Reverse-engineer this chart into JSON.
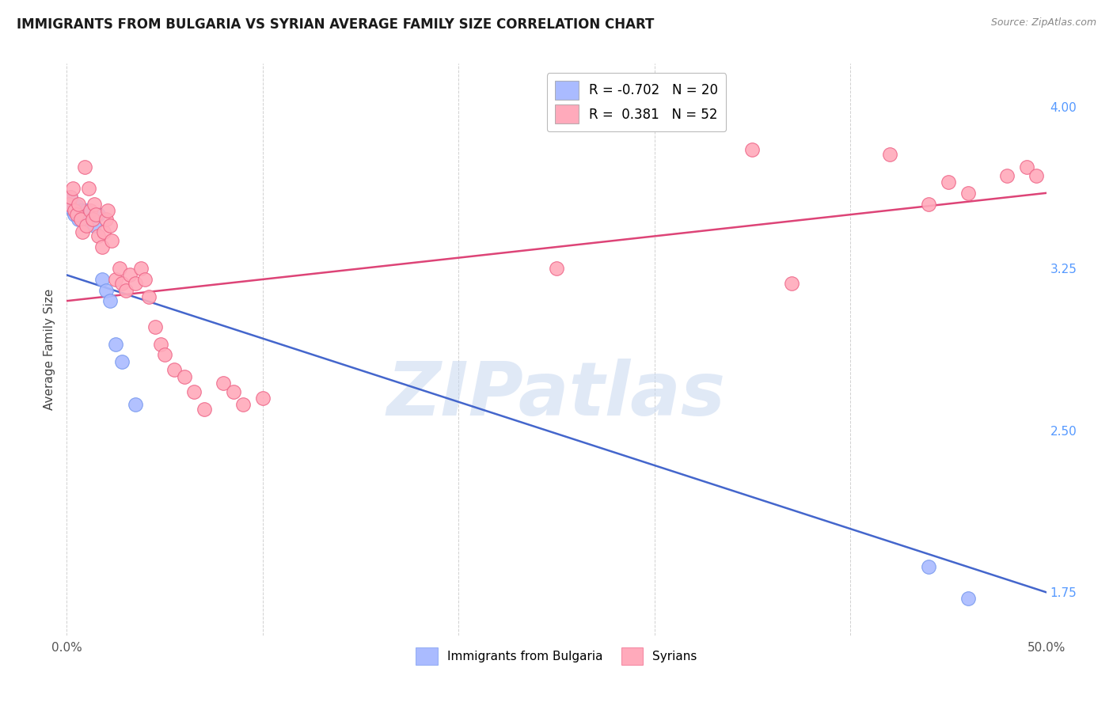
{
  "title": "IMMIGRANTS FROM BULGARIA VS SYRIAN AVERAGE FAMILY SIZE CORRELATION CHART",
  "source": "Source: ZipAtlas.com",
  "ylabel": "Average Family Size",
  "xlim": [
    0.0,
    0.5
  ],
  "ylim": [
    1.55,
    4.2
  ],
  "yticks_right": [
    1.75,
    2.5,
    3.25,
    4.0
  ],
  "bg_color": "#ffffff",
  "grid_color": "#cccccc",
  "watermark_text": "ZIPatlas",
  "legend_upper": [
    {
      "label": "R = -0.702   N = 20",
      "color": "#aabbff"
    },
    {
      "label": "R =  0.381   N = 52",
      "color": "#ffaabb"
    }
  ],
  "bulgaria_scatter": {
    "color": "#aabbff",
    "edge_color": "#7799ee",
    "points": [
      [
        0.001,
        3.55
      ],
      [
        0.002,
        3.58
      ],
      [
        0.003,
        3.52
      ],
      [
        0.004,
        3.5
      ],
      [
        0.005,
        3.54
      ],
      [
        0.006,
        3.48
      ],
      [
        0.007,
        3.52
      ],
      [
        0.008,
        3.5
      ],
      [
        0.01,
        3.52
      ],
      [
        0.012,
        3.48
      ],
      [
        0.014,
        3.45
      ],
      [
        0.016,
        3.5
      ],
      [
        0.018,
        3.2
      ],
      [
        0.02,
        3.15
      ],
      [
        0.022,
        3.1
      ],
      [
        0.025,
        2.9
      ],
      [
        0.028,
        2.82
      ],
      [
        0.035,
        2.62
      ],
      [
        0.44,
        1.87
      ],
      [
        0.46,
        1.72
      ]
    ]
  },
  "syrian_scatter": {
    "color": "#ffaabb",
    "edge_color": "#ee6688",
    "points": [
      [
        0.001,
        3.55
      ],
      [
        0.002,
        3.58
      ],
      [
        0.003,
        3.62
      ],
      [
        0.004,
        3.52
      ],
      [
        0.005,
        3.5
      ],
      [
        0.006,
        3.55
      ],
      [
        0.007,
        3.48
      ],
      [
        0.008,
        3.42
      ],
      [
        0.009,
        3.72
      ],
      [
        0.01,
        3.45
      ],
      [
        0.011,
        3.62
      ],
      [
        0.012,
        3.52
      ],
      [
        0.013,
        3.48
      ],
      [
        0.014,
        3.55
      ],
      [
        0.015,
        3.5
      ],
      [
        0.016,
        3.4
      ],
      [
        0.018,
        3.35
      ],
      [
        0.019,
        3.42
      ],
      [
        0.02,
        3.48
      ],
      [
        0.021,
        3.52
      ],
      [
        0.022,
        3.45
      ],
      [
        0.023,
        3.38
      ],
      [
        0.025,
        3.2
      ],
      [
        0.027,
        3.25
      ],
      [
        0.028,
        3.18
      ],
      [
        0.03,
        3.15
      ],
      [
        0.032,
        3.22
      ],
      [
        0.035,
        3.18
      ],
      [
        0.038,
        3.25
      ],
      [
        0.04,
        3.2
      ],
      [
        0.042,
        3.12
      ],
      [
        0.045,
        2.98
      ],
      [
        0.048,
        2.9
      ],
      [
        0.05,
        2.85
      ],
      [
        0.055,
        2.78
      ],
      [
        0.06,
        2.75
      ],
      [
        0.065,
        2.68
      ],
      [
        0.07,
        2.6
      ],
      [
        0.08,
        2.72
      ],
      [
        0.085,
        2.68
      ],
      [
        0.09,
        2.62
      ],
      [
        0.1,
        2.65
      ],
      [
        0.25,
        3.25
      ],
      [
        0.35,
        3.8
      ],
      [
        0.37,
        3.18
      ],
      [
        0.42,
        3.78
      ],
      [
        0.44,
        3.55
      ],
      [
        0.45,
        3.65
      ],
      [
        0.46,
        3.6
      ],
      [
        0.48,
        3.68
      ],
      [
        0.49,
        3.72
      ],
      [
        0.495,
        3.68
      ]
    ]
  },
  "bulgaria_line": {
    "color": "#4466cc",
    "x0": 0.0,
    "y0": 3.22,
    "x1": 0.5,
    "y1": 1.75
  },
  "syrian_line": {
    "color": "#dd4477",
    "x0": 0.0,
    "y0": 3.1,
    "x1": 0.5,
    "y1": 3.6
  }
}
